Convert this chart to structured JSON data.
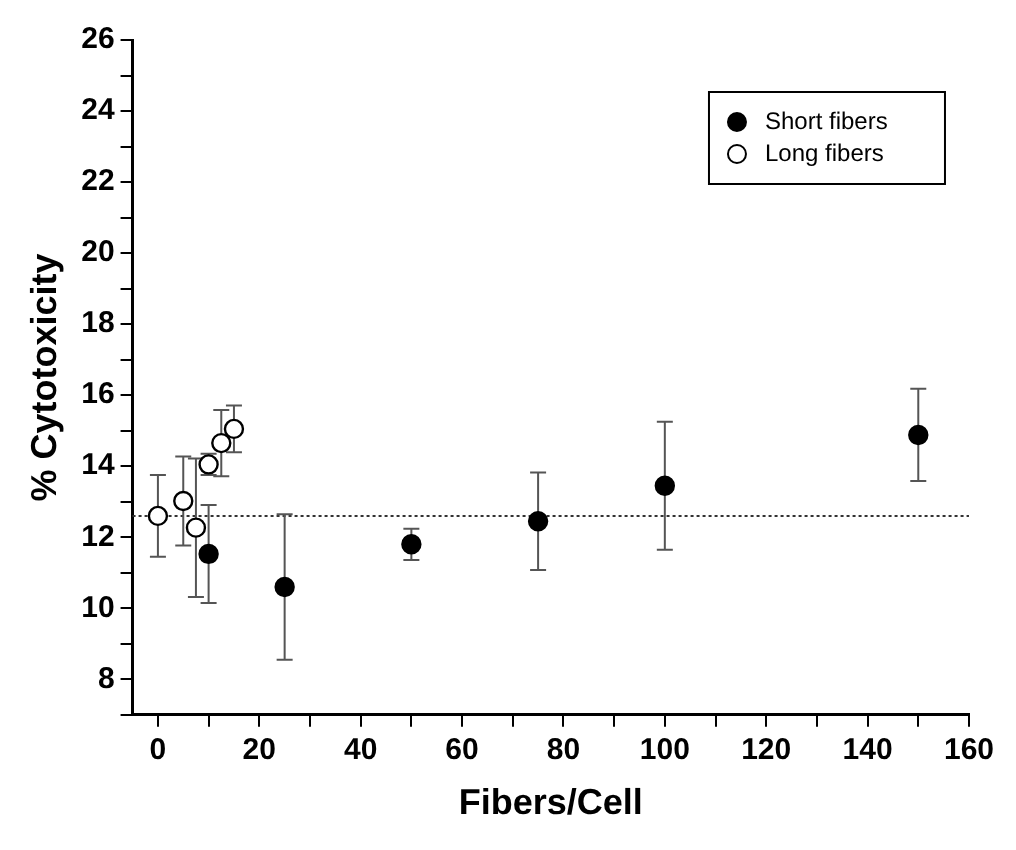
{
  "chart_data": {
    "type": "scatter",
    "xlabel": "Fibers/Cell",
    "ylabel": "% Cytotoxicity",
    "xlim": [
      -5,
      160
    ],
    "xticks": [
      0,
      {
        "value": 10,
        "label": null
      },
      20,
      {
        "value": 30,
        "label": null
      },
      40,
      {
        "value": 50,
        "label": null
      },
      60,
      {
        "value": 70,
        "label": null
      },
      80,
      {
        "value": 90,
        "label": null
      },
      100,
      {
        "value": 110,
        "label": null
      },
      120,
      {
        "value": 130,
        "label": null
      },
      140,
      {
        "value": 150,
        "label": null
      },
      160
    ],
    "ylim": [
      7,
      26
    ],
    "yticks": [
      {
        "value": 7,
        "label": null
      },
      8,
      {
        "value": 9,
        "label": null
      },
      10,
      {
        "value": 11,
        "label": null
      },
      12,
      {
        "value": 13,
        "label": null
      },
      14,
      {
        "value": 15,
        "label": null
      },
      16,
      {
        "value": 17,
        "label": null
      },
      18,
      {
        "value": 19,
        "label": null
      },
      20,
      {
        "value": 21,
        "label": null
      },
      22,
      {
        "value": 23,
        "label": null
      },
      24,
      {
        "value": 25,
        "label": null
      },
      26
    ],
    "series": [
      {
        "name": "Short fibers",
        "color": "#000000",
        "x": [
          10,
          25,
          50,
          75,
          100,
          150
        ],
        "values": [
          11.53,
          10.6,
          11.8,
          12.45,
          13.45,
          14.88
        ],
        "errors": [
          1.38,
          2.05,
          0.44,
          1.37,
          1.8,
          1.3
        ]
      },
      {
        "name": "Long fibers",
        "color": "#ffffff",
        "x": [
          0,
          5,
          7.5,
          10,
          12.5,
          15
        ],
        "values": [
          12.6,
          13.02,
          12.27,
          14.05,
          14.65,
          15.05
        ],
        "errors": [
          1.15,
          1.25,
          1.95,
          0.3,
          0.93,
          0.66
        ]
      }
    ],
    "ref_lines": [
      {
        "axis": "y",
        "value": 12.6,
        "color": "#333333",
        "line_style": "dotted"
      }
    ],
    "legend": "top right",
    "grid": false,
    "marker": "circle"
  }
}
